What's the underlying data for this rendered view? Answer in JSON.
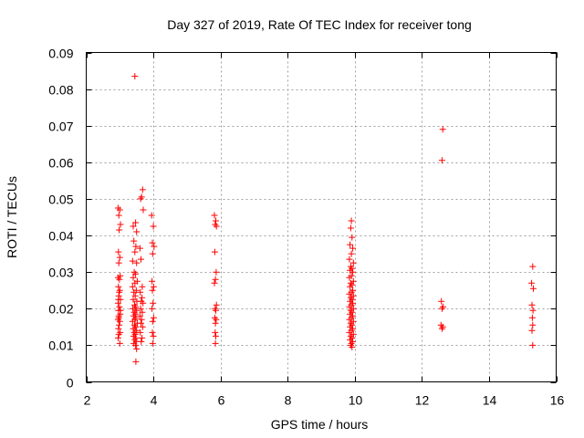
{
  "chart_data": {
    "type": "scatter",
    "title": "Day 327 of 2019, Rate Of TEC Index for receiver tong",
    "xlabel": "GPS time / hours",
    "ylabel": "ROTI / TECUs",
    "xlim": [
      2,
      16
    ],
    "ylim": [
      0,
      0.09
    ],
    "x_ticks": [
      2,
      4,
      6,
      8,
      10,
      12,
      14,
      16
    ],
    "x_tick_labels": [
      "2",
      "4",
      "6",
      "8",
      "10",
      "12",
      "14",
      "16"
    ],
    "y_ticks": [
      0,
      0.01,
      0.02,
      0.03,
      0.04,
      0.05,
      0.06,
      0.07,
      0.08,
      0.09
    ],
    "y_tick_labels": [
      "0",
      "0.01",
      "0.02",
      "0.03",
      "0.04",
      "0.05",
      "0.06",
      "0.07",
      "0.08",
      "0.09"
    ],
    "grid": true,
    "marker": "plus",
    "color": "#ff0000",
    "series": [
      {
        "name": "ROTI",
        "points": [
          [
            2.95,
            0.0475
          ],
          [
            3.0,
            0.047
          ],
          [
            2.97,
            0.0455
          ],
          [
            3.02,
            0.043
          ],
          [
            2.98,
            0.0415
          ],
          [
            2.96,
            0.0355
          ],
          [
            3.0,
            0.034
          ],
          [
            2.97,
            0.0325
          ],
          [
            3.01,
            0.029
          ],
          [
            2.95,
            0.0285
          ],
          [
            2.99,
            0.028
          ],
          [
            2.96,
            0.026
          ],
          [
            3.0,
            0.025
          ],
          [
            2.97,
            0.0235
          ],
          [
            3.02,
            0.0225
          ],
          [
            2.95,
            0.0215
          ],
          [
            2.99,
            0.0205
          ],
          [
            2.96,
            0.0195
          ],
          [
            3.01,
            0.0185
          ],
          [
            2.97,
            0.0175
          ],
          [
            2.95,
            0.017
          ],
          [
            3.0,
            0.0165
          ],
          [
            2.98,
            0.0155
          ],
          [
            2.96,
            0.0145
          ],
          [
            3.01,
            0.0135
          ],
          [
            2.97,
            0.013
          ],
          [
            2.95,
            0.012
          ],
          [
            3.0,
            0.0105
          ],
          [
            2.98,
            0.0245
          ],
          [
            2.96,
            0.0225
          ],
          [
            3.02,
            0.0195
          ],
          [
            2.97,
            0.018
          ],
          [
            3.45,
            0.0835
          ],
          [
            3.4,
            0.0425
          ],
          [
            3.47,
            0.0435
          ],
          [
            3.5,
            0.041
          ],
          [
            3.42,
            0.0385
          ],
          [
            3.48,
            0.037
          ],
          [
            3.45,
            0.0355
          ],
          [
            3.38,
            0.033
          ],
          [
            3.5,
            0.0325
          ],
          [
            3.43,
            0.03
          ],
          [
            3.47,
            0.0295
          ],
          [
            3.4,
            0.0285
          ],
          [
            3.52,
            0.0275
          ],
          [
            3.45,
            0.027
          ],
          [
            3.38,
            0.026
          ],
          [
            3.49,
            0.025
          ],
          [
            3.42,
            0.0245
          ],
          [
            3.46,
            0.0235
          ],
          [
            3.4,
            0.0225
          ],
          [
            3.51,
            0.022
          ],
          [
            3.44,
            0.021
          ],
          [
            3.47,
            0.0205
          ],
          [
            3.39,
            0.02
          ],
          [
            3.5,
            0.0195
          ],
          [
            3.43,
            0.019
          ],
          [
            3.46,
            0.0185
          ],
          [
            3.41,
            0.018
          ],
          [
            3.48,
            0.0175
          ],
          [
            3.45,
            0.017
          ],
          [
            3.38,
            0.0165
          ],
          [
            3.52,
            0.016
          ],
          [
            3.44,
            0.0155
          ],
          [
            3.47,
            0.015
          ],
          [
            3.4,
            0.0145
          ],
          [
            3.5,
            0.014
          ],
          [
            3.43,
            0.0135
          ],
          [
            3.46,
            0.013
          ],
          [
            3.41,
            0.0125
          ],
          [
            3.48,
            0.012
          ],
          [
            3.45,
            0.0115
          ],
          [
            3.49,
            0.011
          ],
          [
            3.42,
            0.0105
          ],
          [
            3.47,
            0.01
          ],
          [
            3.5,
            0.009
          ],
          [
            3.48,
            0.0055
          ],
          [
            3.62,
            0.05
          ],
          [
            3.68,
            0.0525
          ],
          [
            3.65,
            0.0505
          ],
          [
            3.7,
            0.047
          ],
          [
            3.6,
            0.0365
          ],
          [
            3.63,
            0.0335
          ],
          [
            3.67,
            0.026
          ],
          [
            3.61,
            0.0245
          ],
          [
            3.66,
            0.023
          ],
          [
            3.64,
            0.022
          ],
          [
            3.69,
            0.0215
          ],
          [
            3.62,
            0.02
          ],
          [
            3.67,
            0.019
          ],
          [
            3.6,
            0.018
          ],
          [
            3.65,
            0.017
          ],
          [
            3.63,
            0.016
          ],
          [
            3.68,
            0.015
          ],
          [
            3.61,
            0.0135
          ],
          [
            3.66,
            0.012
          ],
          [
            3.64,
            0.011
          ],
          [
            3.95,
            0.0455
          ],
          [
            4.0,
            0.0425
          ],
          [
            3.97,
            0.038
          ],
          [
            4.02,
            0.037
          ],
          [
            3.98,
            0.035
          ],
          [
            3.96,
            0.0275
          ],
          [
            4.01,
            0.026
          ],
          [
            3.97,
            0.025
          ],
          [
            3.99,
            0.0215
          ],
          [
            3.96,
            0.02
          ],
          [
            4.01,
            0.0175
          ],
          [
            3.98,
            0.0165
          ],
          [
            3.97,
            0.0135
          ],
          [
            4.0,
            0.0125
          ],
          [
            3.98,
            0.0105
          ],
          [
            5.82,
            0.0455
          ],
          [
            5.86,
            0.044
          ],
          [
            5.84,
            0.043
          ],
          [
            5.88,
            0.0425
          ],
          [
            5.83,
            0.0355
          ],
          [
            5.87,
            0.03
          ],
          [
            5.85,
            0.028
          ],
          [
            5.82,
            0.027
          ],
          [
            5.88,
            0.021
          ],
          [
            5.84,
            0.02
          ],
          [
            5.86,
            0.0195
          ],
          [
            5.83,
            0.0175
          ],
          [
            5.87,
            0.017
          ],
          [
            5.85,
            0.016
          ],
          [
            5.84,
            0.0135
          ],
          [
            5.86,
            0.0125
          ],
          [
            5.85,
            0.0105
          ],
          [
            9.9,
            0.044
          ],
          [
            9.88,
            0.042
          ],
          [
            9.92,
            0.0395
          ],
          [
            9.86,
            0.0375
          ],
          [
            9.94,
            0.0365
          ],
          [
            9.9,
            0.035
          ],
          [
            9.84,
            0.0335
          ],
          [
            9.96,
            0.0325
          ],
          [
            9.88,
            0.0315
          ],
          [
            9.92,
            0.031
          ],
          [
            9.86,
            0.0305
          ],
          [
            9.94,
            0.03
          ],
          [
            9.9,
            0.029
          ],
          [
            9.84,
            0.0285
          ],
          [
            9.96,
            0.0275
          ],
          [
            9.88,
            0.027
          ],
          [
            9.92,
            0.0265
          ],
          [
            9.86,
            0.026
          ],
          [
            9.94,
            0.025
          ],
          [
            9.9,
            0.0245
          ],
          [
            9.84,
            0.024
          ],
          [
            9.96,
            0.0235
          ],
          [
            9.88,
            0.023
          ],
          [
            9.92,
            0.0225
          ],
          [
            9.86,
            0.022
          ],
          [
            9.94,
            0.0215
          ],
          [
            9.9,
            0.021
          ],
          [
            9.84,
            0.0205
          ],
          [
            9.96,
            0.02
          ],
          [
            9.88,
            0.0195
          ],
          [
            9.92,
            0.019
          ],
          [
            9.86,
            0.0185
          ],
          [
            9.94,
            0.018
          ],
          [
            9.9,
            0.0175
          ],
          [
            9.84,
            0.017
          ],
          [
            9.96,
            0.0165
          ],
          [
            9.88,
            0.016
          ],
          [
            9.92,
            0.0155
          ],
          [
            9.86,
            0.015
          ],
          [
            9.94,
            0.0145
          ],
          [
            9.9,
            0.014
          ],
          [
            9.84,
            0.0135
          ],
          [
            9.96,
            0.013
          ],
          [
            9.88,
            0.0125
          ],
          [
            9.92,
            0.012
          ],
          [
            9.86,
            0.0115
          ],
          [
            9.94,
            0.011
          ],
          [
            9.9,
            0.0105
          ],
          [
            9.88,
            0.01
          ],
          [
            9.92,
            0.0095
          ],
          [
            12.62,
            0.069
          ],
          [
            12.6,
            0.0605
          ],
          [
            12.58,
            0.022
          ],
          [
            12.63,
            0.0205
          ],
          [
            12.6,
            0.02
          ],
          [
            12.57,
            0.0155
          ],
          [
            12.62,
            0.015
          ],
          [
            12.6,
            0.0145
          ],
          [
            15.3,
            0.0315
          ],
          [
            15.27,
            0.027
          ],
          [
            15.32,
            0.0255
          ],
          [
            15.28,
            0.021
          ],
          [
            15.31,
            0.0195
          ],
          [
            15.29,
            0.0175
          ],
          [
            15.3,
            0.0155
          ],
          [
            15.28,
            0.014
          ],
          [
            15.3,
            0.01
          ]
        ]
      }
    ]
  }
}
